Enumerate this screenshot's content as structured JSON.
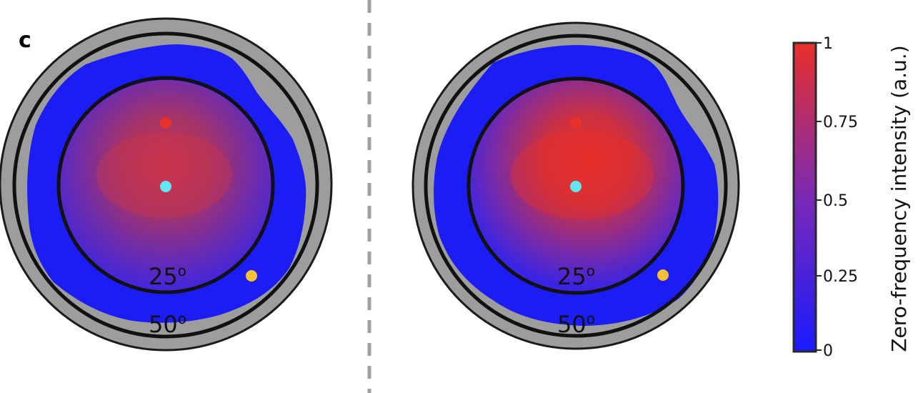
{
  "panel_label": "c",
  "divider": {
    "style": "dashed",
    "color": "#a0a0a0"
  },
  "colorbar": {
    "title": "Zero-frequency intensity (a.u.)",
    "ticks": [
      {
        "value": 1,
        "label": "1"
      },
      {
        "value": 0.75,
        "label": "0.75"
      },
      {
        "value": 0.5,
        "label": "0.5"
      },
      {
        "value": 0.25,
        "label": "0.25"
      },
      {
        "value": 0,
        "label": "0"
      }
    ],
    "color_low": "#1a1aff",
    "color_high": "#e8302a"
  },
  "plots": [
    {
      "ring_inner_label": "25",
      "ring_outer_label": "50",
      "degree_symbol": "o",
      "peak_intensity": 0.75,
      "markers": [
        {
          "name": "red",
          "color": "#e8302a"
        },
        {
          "name": "cyan",
          "color": "#62e6f2"
        },
        {
          "name": "yellow",
          "color": "#f5c034"
        }
      ]
    },
    {
      "ring_inner_label": "25",
      "ring_outer_label": "50",
      "degree_symbol": "o",
      "peak_intensity": 0.95,
      "markers": [
        {
          "name": "red",
          "color": "#e8302a"
        },
        {
          "name": "cyan",
          "color": "#62e6f2"
        },
        {
          "name": "yellow",
          "color": "#f5c034"
        }
      ]
    }
  ]
}
